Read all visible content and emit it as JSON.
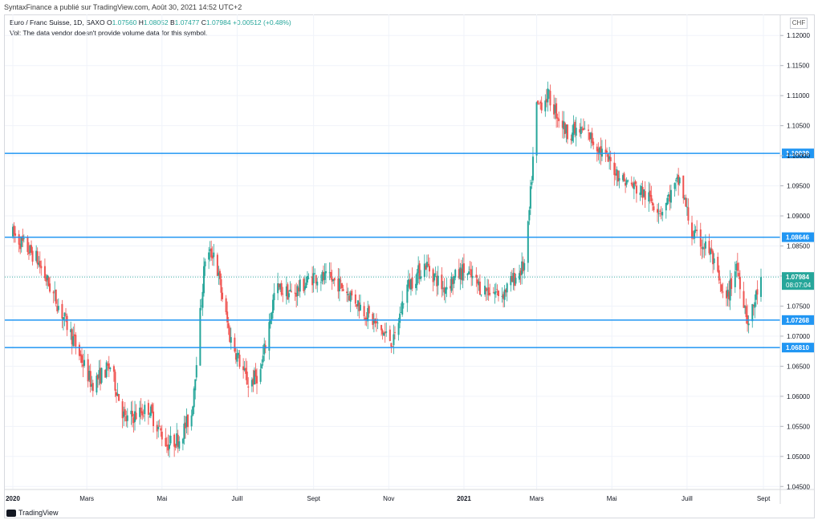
{
  "header": {
    "published": "SyntaxFinance a  publié sur TradingView.com, Août 30, 2021 14:52 UTC+2"
  },
  "legend": {
    "symbol": "Euro / Franc Suisse, 1D, SAXO",
    "o_label": "O",
    "o_value": "1.07560",
    "h_label": "H",
    "h_value": "1.08052",
    "b_label": "B",
    "b_value": "1.07477",
    "c_label": "C",
    "c_value": "1.07984",
    "change": "+0.00512 (+0.48%)",
    "volume_note": "Vol: The data vendor doesn't provide volume data for this symbol."
  },
  "currency": "CHF",
  "branding": "TradingView",
  "colors": {
    "up": "#26a69a",
    "down": "#ef5350",
    "level": "#2196f3",
    "grid": "#f0f3fa",
    "price_dot": "#26a69a"
  },
  "current_price": {
    "value": "1.07984",
    "countdown": "08:07:04"
  },
  "chart_data": {
    "type": "candlestick",
    "title": "",
    "xlabel": "",
    "ylabel": "",
    "ylim": [
      1.0445,
      1.1235
    ],
    "y_ticks": [
      "1.12000",
      "1.11500",
      "1.11000",
      "1.10500",
      "1.10000",
      "1.09500",
      "1.09000",
      "1.08500",
      "1.08000",
      "1.07500",
      "1.07000",
      "1.06500",
      "1.06000",
      "1.05500",
      "1.05000",
      "1.04500"
    ],
    "x_ticks": [
      {
        "label": "2020",
        "bold": true
      },
      {
        "label": "Mars",
        "bold": false
      },
      {
        "label": "Mai",
        "bold": false
      },
      {
        "label": "Juill",
        "bold": false
      },
      {
        "label": "Sept",
        "bold": false
      },
      {
        "label": "Nov",
        "bold": false
      },
      {
        "label": "2021",
        "bold": true
      },
      {
        "label": "Mars",
        "bold": false
      },
      {
        "label": "Mai",
        "bold": false
      },
      {
        "label": "Juill",
        "bold": false
      },
      {
        "label": "Sept",
        "bold": false
      }
    ],
    "horizontal_levels": [
      {
        "value": 1.10039,
        "label": "1.10039"
      },
      {
        "value": 1.08646,
        "label": "1.08646"
      },
      {
        "value": 1.07268,
        "label": "1.07268"
      },
      {
        "value": 1.0681,
        "label": "1.06810"
      }
    ],
    "close_path": [
      [
        "2020-01-01",
        1.087
      ],
      [
        "2020-01-20",
        1.083
      ],
      [
        "2020-02-05",
        1.076
      ],
      [
        "2020-02-20",
        1.069
      ],
      [
        "2020-03-05",
        1.062
      ],
      [
        "2020-03-20",
        1.065
      ],
      [
        "2020-04-01",
        1.056
      ],
      [
        "2020-04-20",
        1.058
      ],
      [
        "2020-05-05",
        1.052
      ],
      [
        "2020-05-15",
        1.053
      ],
      [
        "2020-05-25",
        1.057
      ],
      [
        "2020-06-05",
        1.083
      ],
      [
        "2020-06-12",
        1.084
      ],
      [
        "2020-06-25",
        1.07
      ],
      [
        "2020-07-10",
        1.062
      ],
      [
        "2020-07-20",
        1.064
      ],
      [
        "2020-08-01",
        1.078
      ],
      [
        "2020-08-15",
        1.077
      ],
      [
        "2020-09-01",
        1.08
      ],
      [
        "2020-09-20",
        1.079
      ],
      [
        "2020-10-05",
        1.076
      ],
      [
        "2020-10-25",
        1.071
      ],
      [
        "2020-11-05",
        1.069
      ],
      [
        "2020-11-15",
        1.078
      ],
      [
        "2020-12-01",
        1.082
      ],
      [
        "2020-12-15",
        1.078
      ],
      [
        "2021-01-01",
        1.081
      ],
      [
        "2021-01-15",
        1.078
      ],
      [
        "2021-02-01",
        1.077
      ],
      [
        "2021-02-20",
        1.082
      ],
      [
        "2021-03-01",
        1.108
      ],
      [
        "2021-03-10",
        1.11
      ],
      [
        "2021-03-25",
        1.104
      ],
      [
        "2021-04-10",
        1.104
      ],
      [
        "2021-04-25",
        1.1
      ],
      [
        "2021-05-10",
        1.096
      ],
      [
        "2021-05-25",
        1.094
      ],
      [
        "2021-06-10",
        1.091
      ],
      [
        "2021-06-25",
        1.096
      ],
      [
        "2021-07-05",
        1.087
      ],
      [
        "2021-07-20",
        1.084
      ],
      [
        "2021-08-01",
        1.075
      ],
      [
        "2021-08-10",
        1.082
      ],
      [
        "2021-08-20",
        1.072
      ],
      [
        "2021-08-30",
        1.0798
      ]
    ]
  }
}
